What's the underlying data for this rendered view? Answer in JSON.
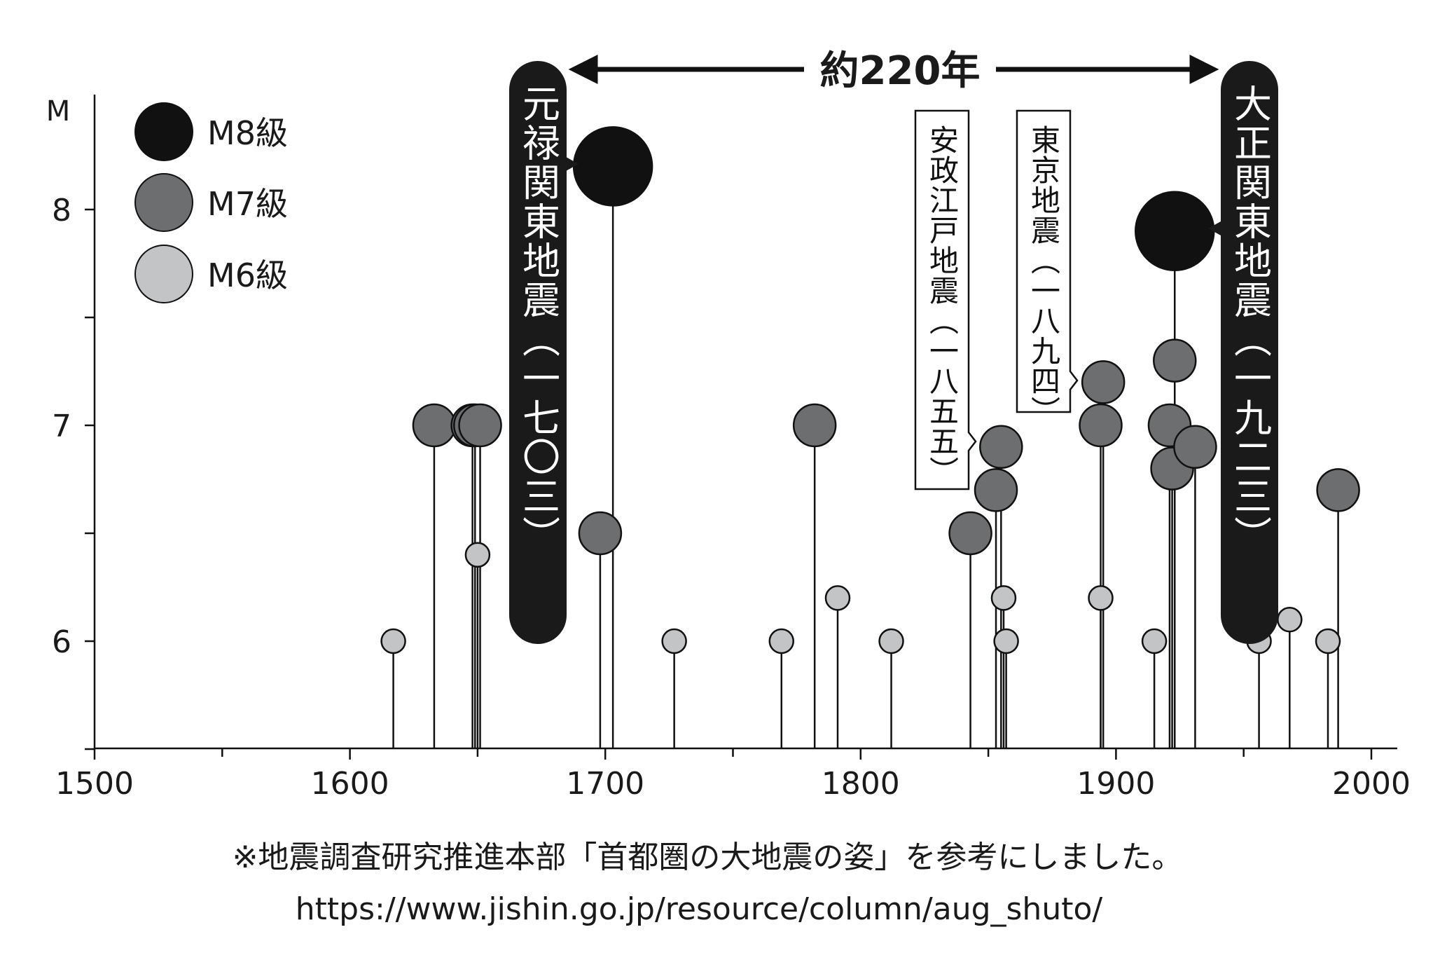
{
  "chart_data": {
    "type": "scatter",
    "xlabel": "",
    "ylabel": "M",
    "xlim": [
      1500,
      2010
    ],
    "ylim": [
      5.5,
      8.5
    ],
    "x_ticks": [
      "1500",
      "1600",
      "1700",
      "1800",
      "1900",
      "2000"
    ],
    "y_ticks": [
      "6",
      "7",
      "8"
    ],
    "legend": {
      "position": "top-left",
      "items": [
        {
          "label": "M8級",
          "class": "M8"
        },
        {
          "label": "M7級",
          "class": "M7"
        },
        {
          "label": "M6級",
          "class": "M6"
        }
      ]
    },
    "colors": {
      "M8": "#111111",
      "M7": "#6d6e70",
      "M6": "#c3c4c6",
      "text": "#1a1a1a"
    },
    "points": [
      {
        "year": 1617,
        "m": 6.0,
        "class": "M6"
      },
      {
        "year": 1633,
        "m": 7.0,
        "class": "M7"
      },
      {
        "year": 1648,
        "m": 7.0,
        "class": "M7"
      },
      {
        "year": 1649,
        "m": 7.0,
        "class": "M7"
      },
      {
        "year": 1650,
        "m": 6.4,
        "class": "M6"
      },
      {
        "year": 1651,
        "m": 7.0,
        "class": "M7"
      },
      {
        "year": 1698,
        "m": 6.5,
        "class": "M7"
      },
      {
        "year": 1703,
        "m": 8.2,
        "class": "M8"
      },
      {
        "year": 1727,
        "m": 6.0,
        "class": "M6"
      },
      {
        "year": 1769,
        "m": 6.0,
        "class": "M6"
      },
      {
        "year": 1782,
        "m": 7.0,
        "class": "M7"
      },
      {
        "year": 1791,
        "m": 6.2,
        "class": "M6"
      },
      {
        "year": 1812,
        "m": 6.0,
        "class": "M6"
      },
      {
        "year": 1843,
        "m": 6.5,
        "class": "M7"
      },
      {
        "year": 1853,
        "m": 6.7,
        "class": "M7"
      },
      {
        "year": 1855,
        "m": 6.9,
        "class": "M7"
      },
      {
        "year": 1856,
        "m": 6.2,
        "class": "M6"
      },
      {
        "year": 1857,
        "m": 6.0,
        "class": "M6"
      },
      {
        "year": 1894,
        "m": 6.2,
        "class": "M6"
      },
      {
        "year": 1894,
        "m": 7.0,
        "class": "M7"
      },
      {
        "year": 1895,
        "m": 7.2,
        "class": "M7"
      },
      {
        "year": 1915,
        "m": 6.0,
        "class": "M6"
      },
      {
        "year": 1921,
        "m": 7.0,
        "class": "M7"
      },
      {
        "year": 1922,
        "m": 6.8,
        "class": "M7"
      },
      {
        "year": 1923,
        "m": 7.3,
        "class": "M7"
      },
      {
        "year": 1923,
        "m": 7.9,
        "class": "M8"
      },
      {
        "year": 1931,
        "m": 6.9,
        "class": "M7"
      },
      {
        "year": 1956,
        "m": 6.0,
        "class": "M6"
      },
      {
        "year": 1968,
        "m": 6.1,
        "class": "M6"
      },
      {
        "year": 1983,
        "m": 6.0,
        "class": "M6"
      },
      {
        "year": 1987,
        "m": 6.7,
        "class": "M7"
      }
    ],
    "annotations": {
      "genroku": {
        "text": "元禄関東地震（一七〇三）"
      },
      "taisho": {
        "text": "大正関東地震（一九二三）"
      },
      "ansei": {
        "text": "安政江戸地震（一八五五）"
      },
      "tokyo": {
        "text": "東京地震（一八九四）"
      },
      "span": {
        "text": "約220年"
      }
    }
  },
  "source": {
    "line1": "※地震調査研究推進本部「首都圏の大地震の姿」を参考にしました。",
    "line2": "https://www.jishin.go.jp/resource/column/aug_shuto/"
  }
}
